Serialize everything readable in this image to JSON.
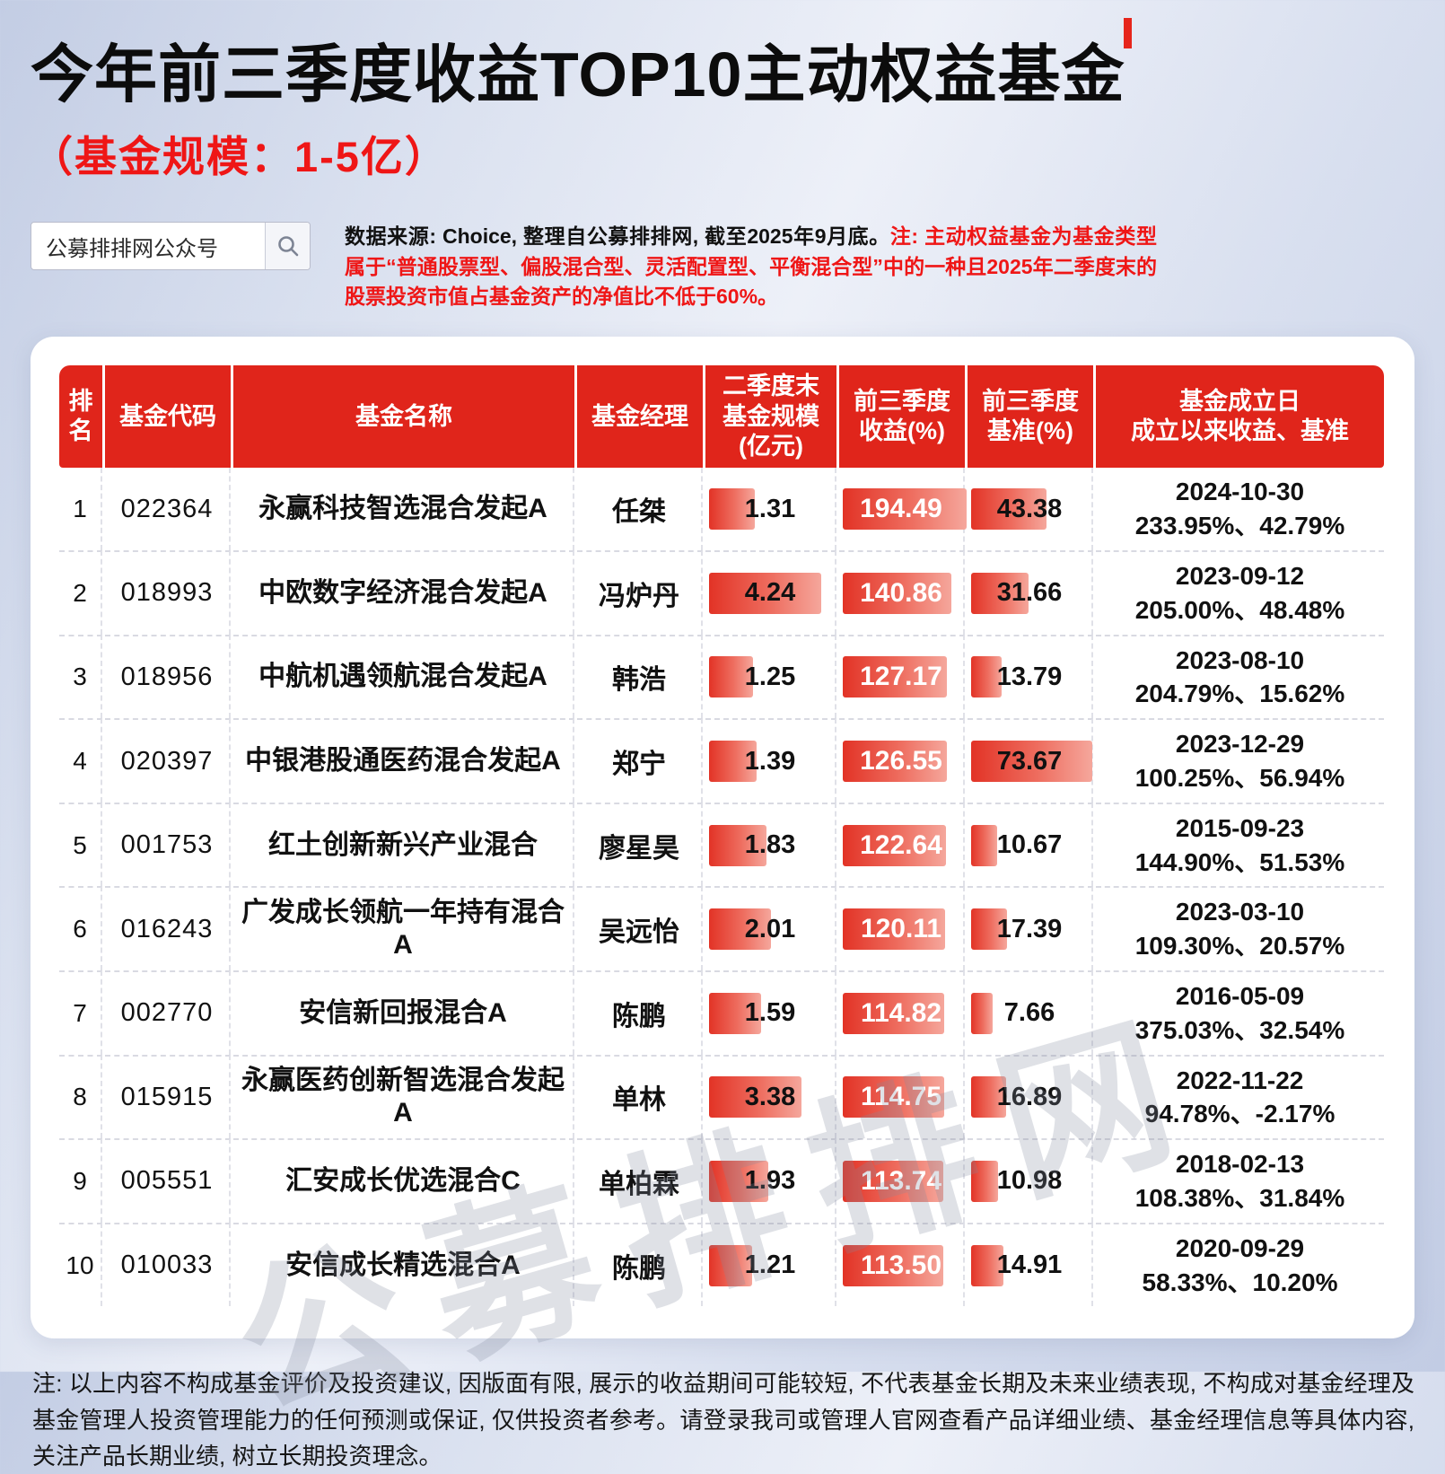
{
  "header": {
    "title": "今年前三季度收益TOP10主动权益基金",
    "subtitle": "（基金规模：1-5亿）"
  },
  "search": {
    "label": "公募排排网公众号"
  },
  "source": {
    "normal": "数据来源: Choice, 整理自公募排排网, 截至2025年9月底。",
    "note": "注: 主动权益基金为基金类型属于“普通股票型、偏股混合型、灵活配置型、平衡混合型”中的一种且2025年二季度末的股票投资市值占基金资产的净值比不低于60%。"
  },
  "watermark": "公募排排网",
  "colors": {
    "accent_red": "#e0251b",
    "bar_gradient_start": "#e23326",
    "bar_gradient_end": "#f5a79c"
  },
  "table": {
    "headers": [
      "排\n名",
      "基金代码",
      "基金名称",
      "基金经理",
      "二季度末\n基金规模\n(亿元)",
      "前三季度\n收益(%)",
      "前三季度\n基准(%)",
      "基金成立日\n成立以来收益、基准"
    ],
    "rows": [
      {
        "rank": "1",
        "code": "022364",
        "name": "永赢科技智选混合发起A",
        "manager": "任桀",
        "scale": "1.31",
        "return": "194.49",
        "benchmark": "43.38",
        "founded": "2024-10-30",
        "since": "233.95%、42.79%"
      },
      {
        "rank": "2",
        "code": "018993",
        "name": "中欧数字经济混合发起A",
        "manager": "冯炉丹",
        "scale": "4.24",
        "return": "140.86",
        "benchmark": "31.66",
        "founded": "2023-09-12",
        "since": "205.00%、48.48%"
      },
      {
        "rank": "3",
        "code": "018956",
        "name": "中航机遇领航混合发起A",
        "manager": "韩浩",
        "scale": "1.25",
        "return": "127.17",
        "benchmark": "13.79",
        "founded": "2023-08-10",
        "since": "204.79%、15.62%"
      },
      {
        "rank": "4",
        "code": "020397",
        "name": "中银港股通医药混合发起A",
        "manager": "郑宁",
        "scale": "1.39",
        "return": "126.55",
        "benchmark": "73.67",
        "founded": "2023-12-29",
        "since": "100.25%、56.94%"
      },
      {
        "rank": "5",
        "code": "001753",
        "name": "红土创新新兴产业混合",
        "manager": "廖星昊",
        "scale": "1.83",
        "return": "122.64",
        "benchmark": "10.67",
        "founded": "2015-09-23",
        "since": "144.90%、51.53%"
      },
      {
        "rank": "6",
        "code": "016243",
        "name": "广发成长领航一年持有混合A",
        "manager": "吴远怡",
        "scale": "2.01",
        "return": "120.11",
        "benchmark": "17.39",
        "founded": "2023-03-10",
        "since": "109.30%、20.57%"
      },
      {
        "rank": "7",
        "code": "002770",
        "name": "安信新回报混合A",
        "manager": "陈鹏",
        "scale": "1.59",
        "return": "114.82",
        "benchmark": "7.66",
        "founded": "2016-05-09",
        "since": "375.03%、32.54%"
      },
      {
        "rank": "8",
        "code": "015915",
        "name": "永赢医药创新智选混合发起A",
        "manager": "单林",
        "scale": "3.38",
        "return": "114.75",
        "benchmark": "16.89",
        "founded": "2022-11-22",
        "since": "94.78%、-2.17%"
      },
      {
        "rank": "9",
        "code": "005551",
        "name": "汇安成长优选混合C",
        "manager": "单柏霖",
        "scale": "1.93",
        "return": "113.74",
        "benchmark": "10.98",
        "founded": "2018-02-13",
        "since": "108.38%、31.84%"
      },
      {
        "rank": "10",
        "code": "010033",
        "name": "安信成长精选混合A",
        "manager": "陈鹏",
        "scale": "1.21",
        "return": "113.50",
        "benchmark": "14.91",
        "founded": "2020-09-29",
        "since": "58.33%、10.20%"
      }
    ],
    "maxima": {
      "scale": 4.24,
      "return": 194.49,
      "benchmark": 73.67
    }
  },
  "footer": {
    "note": "注: 以上内容不构成基金评价及投资建议, 因版面有限, 展示的收益期间可能较短, 不代表基金长期及未来业绩表现, 不构成对基金经理及基金管理人投资管理能力的任何预测或保证, 仅供投资者参考。请登录我司或管理人官网查看产品详细业绩、基金经理信息等具体内容, 关注产品长期业绩, 树立长期投资理念。"
  },
  "chart_data": {
    "type": "table",
    "title": "今年前三季度收益TOP10主动权益基金（基金规模：1-5亿）",
    "columns": [
      "排名",
      "基金代码",
      "基金名称",
      "基金经理",
      "二季度末基金规模(亿元)",
      "前三季度收益(%)",
      "前三季度基准(%)",
      "基金成立日",
      "成立以来收益、基准"
    ],
    "rows": [
      [
        1,
        "022364",
        "永赢科技智选混合发起A",
        "任桀",
        1.31,
        194.49,
        43.38,
        "2024-10-30",
        "233.95%、42.79%"
      ],
      [
        2,
        "018993",
        "中欧数字经济混合发起A",
        "冯炉丹",
        4.24,
        140.86,
        31.66,
        "2023-09-12",
        "205.00%、48.48%"
      ],
      [
        3,
        "018956",
        "中航机遇领航混合发起A",
        "韩浩",
        1.25,
        127.17,
        13.79,
        "2023-08-10",
        "204.79%、15.62%"
      ],
      [
        4,
        "020397",
        "中银港股通医药混合发起A",
        "郑宁",
        1.39,
        126.55,
        73.67,
        "2023-12-29",
        "100.25%、56.94%"
      ],
      [
        5,
        "001753",
        "红土创新新兴产业混合",
        "廖星昊",
        1.83,
        122.64,
        10.67,
        "2015-09-23",
        "144.90%、51.53%"
      ],
      [
        6,
        "016243",
        "广发成长领航一年持有混合A",
        "吴远怡",
        2.01,
        120.11,
        17.39,
        "2023-03-10",
        "109.30%、20.57%"
      ],
      [
        7,
        "002770",
        "安信新回报混合A",
        "陈鹏",
        1.59,
        114.82,
        7.66,
        "2016-05-09",
        "375.03%、32.54%"
      ],
      [
        8,
        "015915",
        "永赢医药创新智选混合发起A",
        "单林",
        3.38,
        114.75,
        16.89,
        "2022-11-22",
        "94.78%、-2.17%"
      ],
      [
        9,
        "005551",
        "汇安成长优选混合C",
        "单柏霖",
        1.93,
        113.74,
        10.98,
        "2018-02-13",
        "108.38%、31.84%"
      ],
      [
        10,
        "010033",
        "安信成长精选混合A",
        "陈鹏",
        1.21,
        113.5,
        14.91,
        "2020-09-29",
        "58.33%、10.20%"
      ]
    ],
    "notes": "红色数据条分别表示二季度末基金规模、前三季度收益、前三季度基准的相对大小"
  }
}
